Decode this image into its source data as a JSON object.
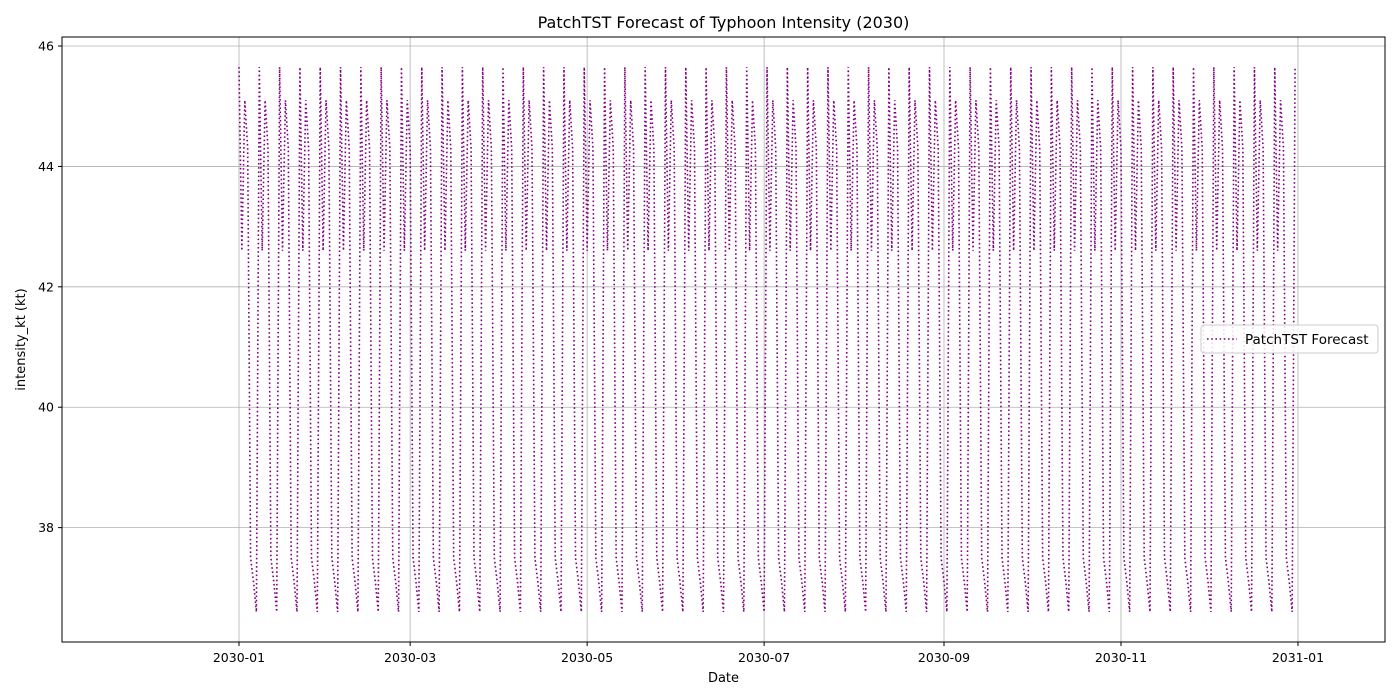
{
  "chart_data": {
    "type": "line",
    "title": "PatchTST Forecast of Typhoon Intensity (2030)",
    "xlabel": "Date",
    "ylabel": "intensity_kt (kt)",
    "x_range": [
      "2030-01-01",
      "2030-12-31"
    ],
    "xlim": [
      "2029-11-01",
      "2031-01-31"
    ],
    "ylim": [
      36.1,
      46.15
    ],
    "x_ticks": [
      "2030-01",
      "2030-03",
      "2030-05",
      "2030-07",
      "2030-09",
      "2030-11",
      "2031-01"
    ],
    "y_ticks": [
      38,
      40,
      42,
      44,
      46
    ],
    "grid": true,
    "legend_position": "center-right",
    "series": [
      {
        "name": "PatchTST Forecast",
        "color": "#800080",
        "line_style": "dotted",
        "period_days": 7,
        "weekly_pattern": [
          45.65,
          42.6,
          45.1,
          44.3,
          37.5,
          37.1,
          36.6
        ]
      }
    ]
  }
}
